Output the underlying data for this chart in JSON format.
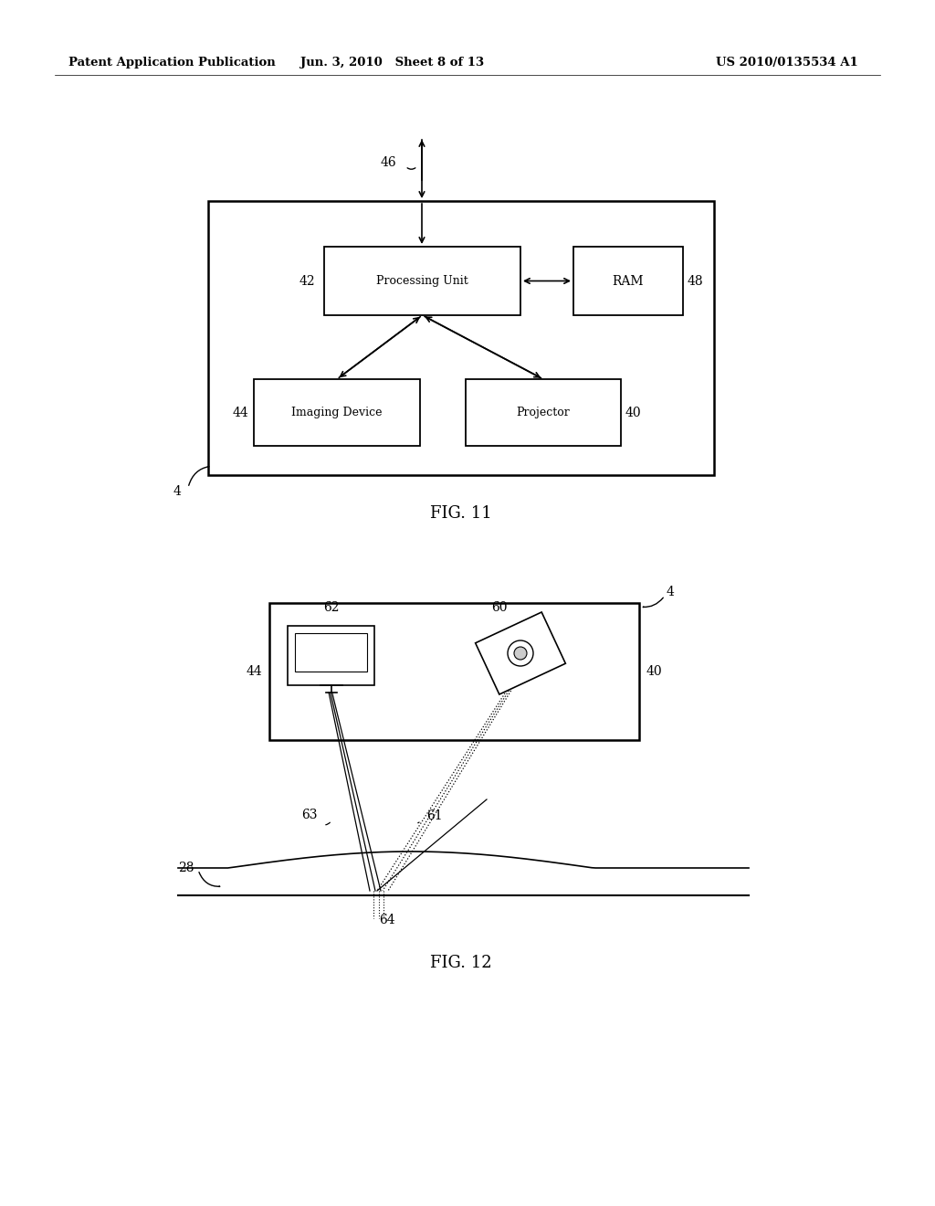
{
  "bg_color": "#ffffff",
  "header_left": "Patent Application Publication",
  "header_center": "Jun. 3, 2010   Sheet 8 of 13",
  "header_right": "US 2010/0135534 A1",
  "fig11_caption": "FIG. 11",
  "fig12_caption": "FIG. 12"
}
